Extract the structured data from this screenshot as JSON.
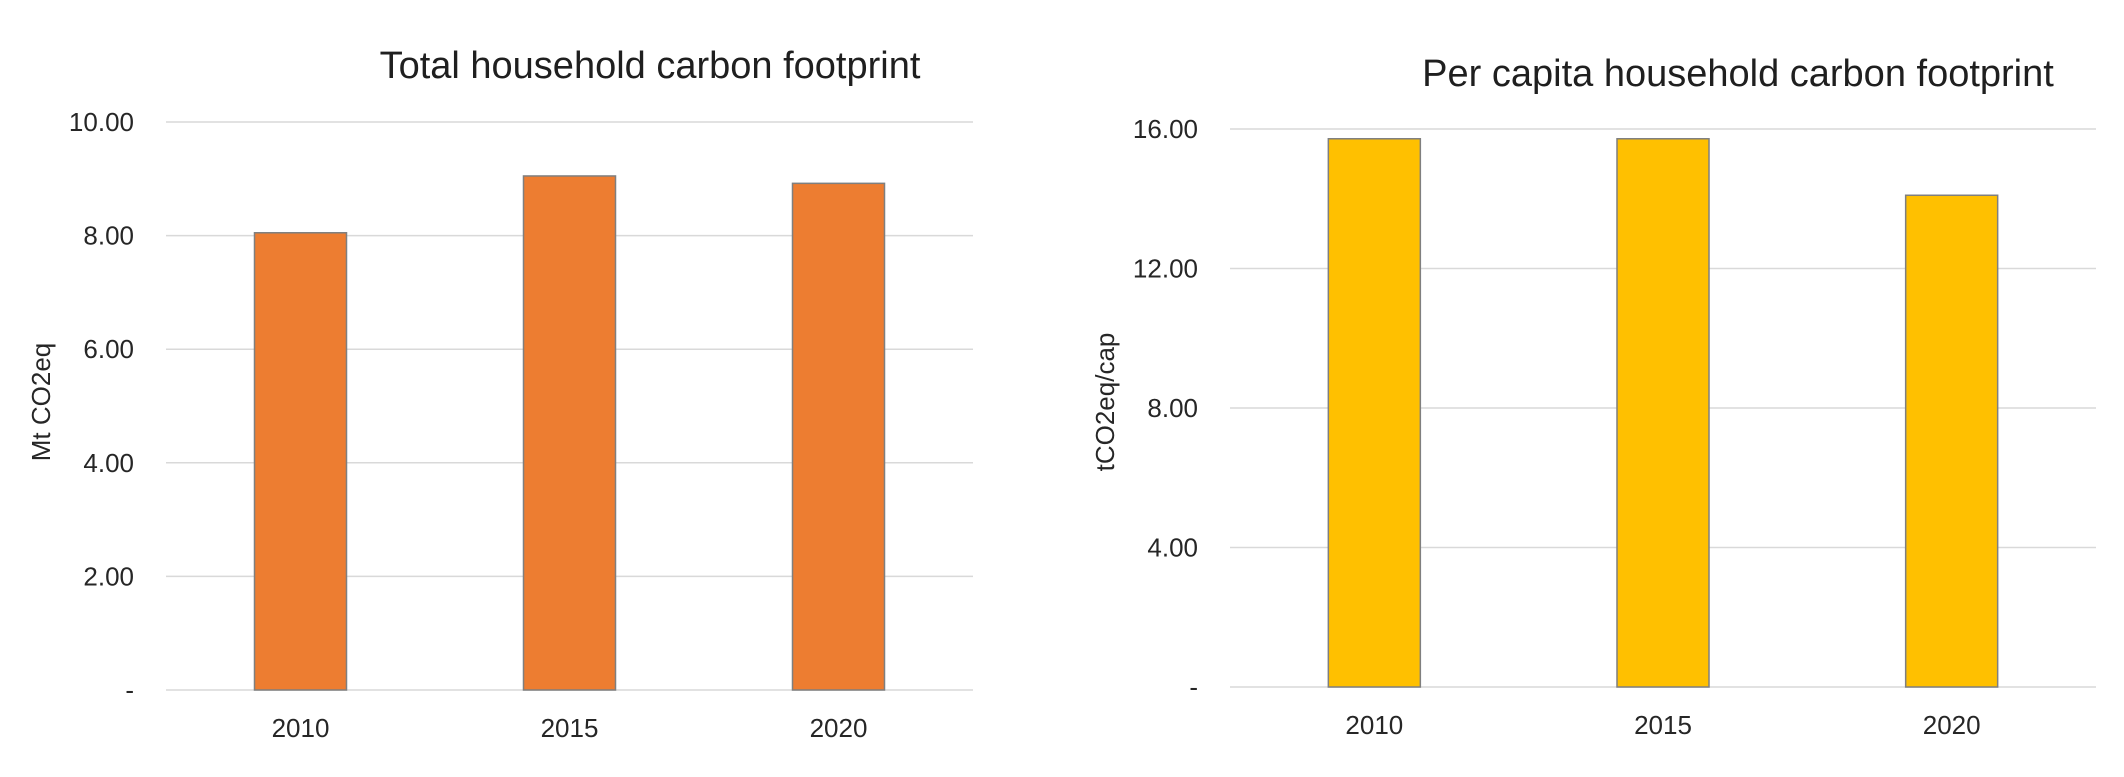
{
  "chart_data": [
    {
      "type": "bar",
      "title": "Total household carbon footprint",
      "categories": [
        "2010",
        "2015",
        "2020"
      ],
      "values": [
        8.05,
        9.05,
        8.92
      ],
      "ylabel": "Mt CO2eq",
      "xlabel": "",
      "ylim": [
        0,
        10
      ],
      "yticks": [
        0,
        2,
        4,
        6,
        8,
        10
      ],
      "ytick_labels": [
        "-",
        "2.00",
        "4.00",
        "6.00",
        "8.00",
        "10.00"
      ],
      "grid": true,
      "legend": "none",
      "color": "#ED7D31"
    },
    {
      "type": "bar",
      "title": "Per capita household carbon footprint",
      "categories": [
        "2010",
        "2015",
        "2020"
      ],
      "values": [
        15.72,
        15.72,
        14.1
      ],
      "ylabel": "tCO2eq/cap",
      "xlabel": "",
      "ylim": [
        0,
        16
      ],
      "yticks": [
        0,
        4,
        8,
        12,
        16
      ],
      "ytick_labels": [
        "-",
        "4.00",
        "8.00",
        "12.00",
        "16.00"
      ],
      "grid": true,
      "legend": "none",
      "color": "#FFC000"
    }
  ]
}
